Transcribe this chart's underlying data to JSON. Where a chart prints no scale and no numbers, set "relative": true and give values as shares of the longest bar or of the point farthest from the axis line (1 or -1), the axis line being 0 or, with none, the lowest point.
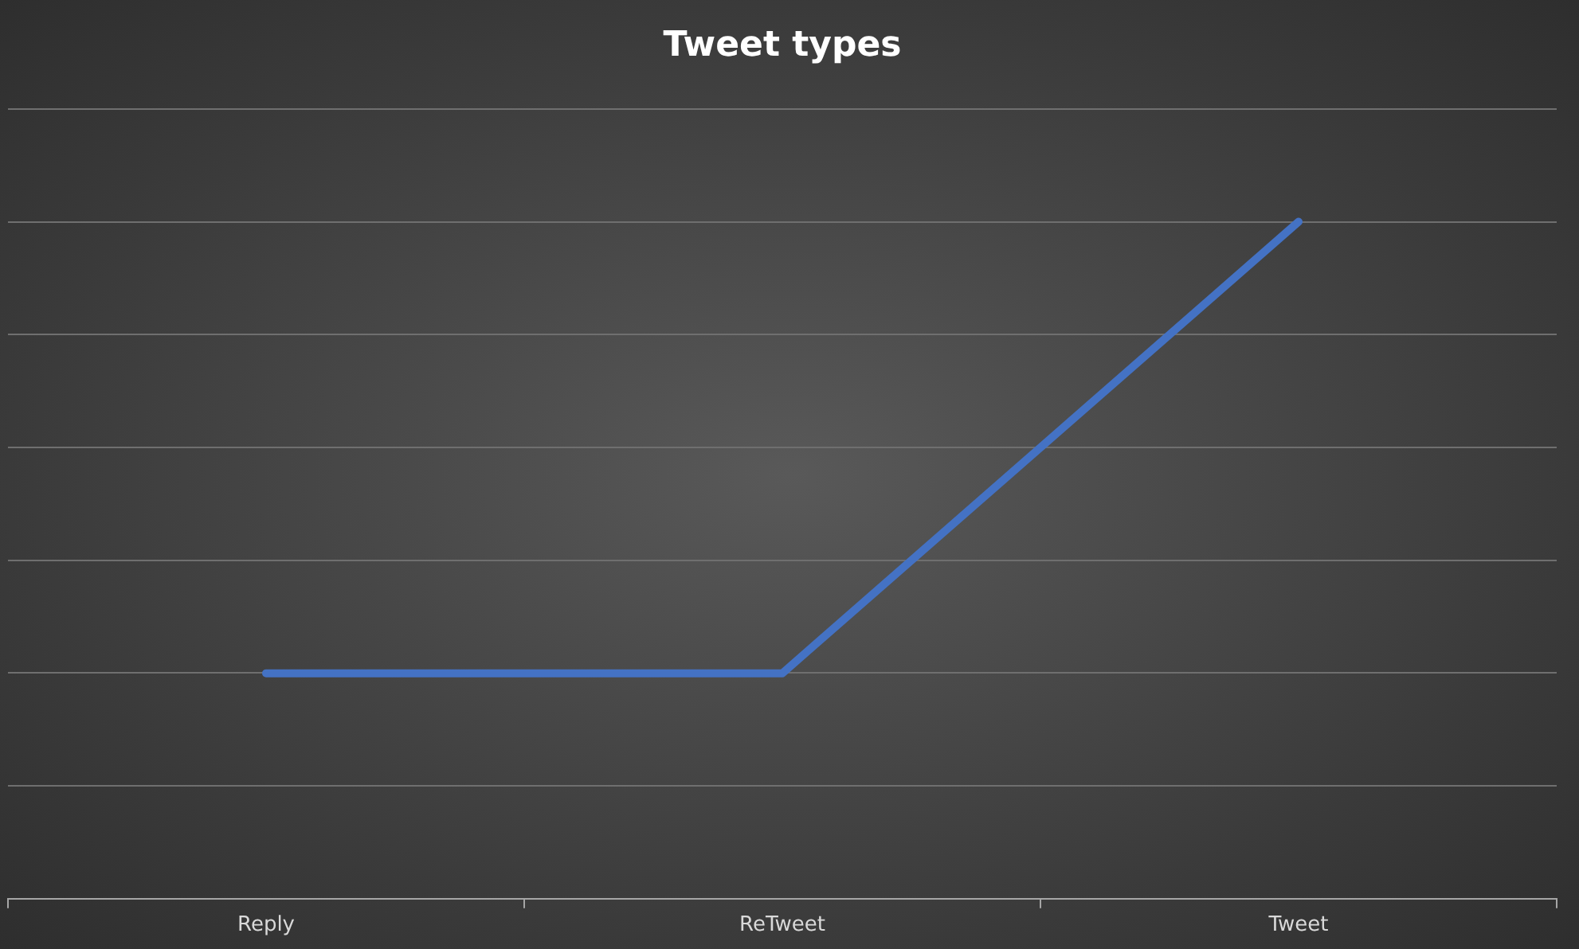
{
  "chart_data": {
    "type": "line",
    "title": "Tweet types",
    "categories": [
      "Reply",
      "ReTweet",
      "Tweet"
    ],
    "series": [
      {
        "color": "#4472c4",
        "values": [
          0.333,
          0.333,
          1
        ]
      }
    ],
    "relative": true,
    "grid": "y",
    "legend": false,
    "marker": "none",
    "line_style": "solid"
  }
}
